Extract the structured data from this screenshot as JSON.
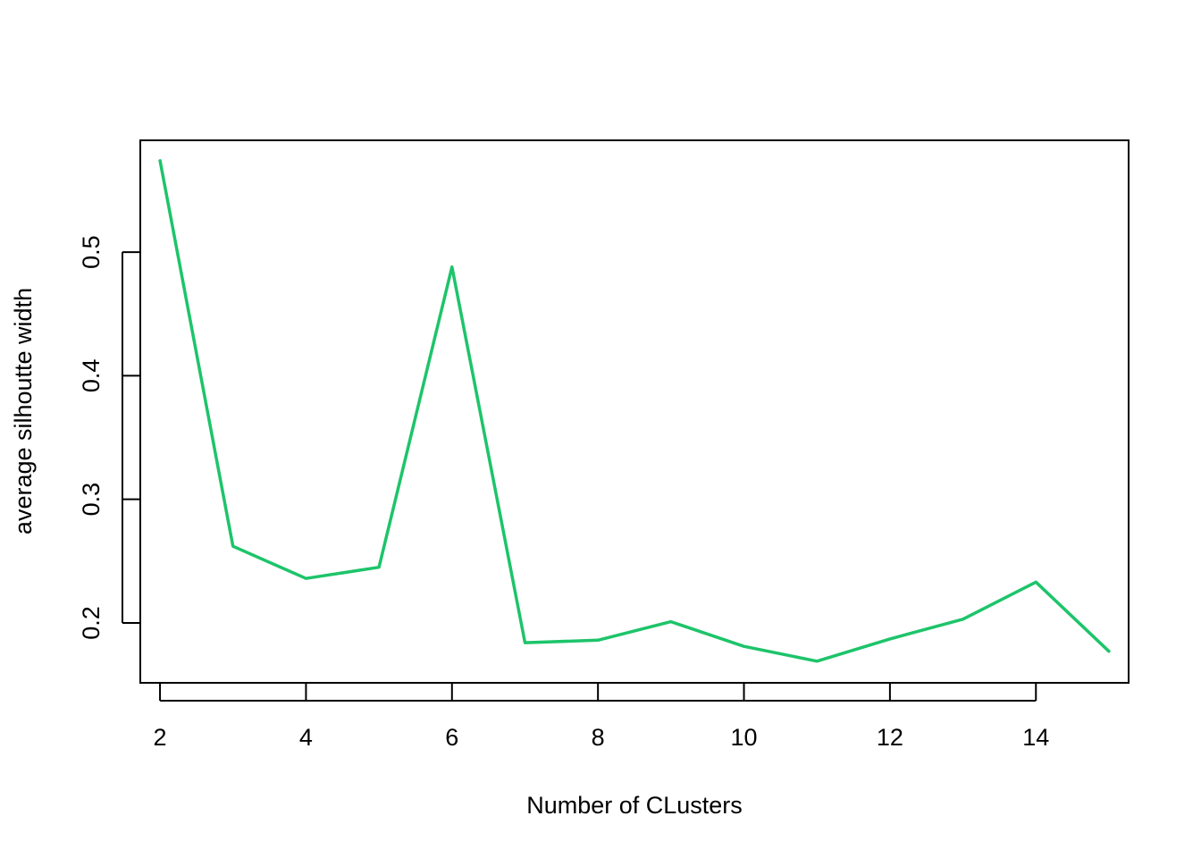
{
  "chart_data": {
    "type": "line",
    "title": "",
    "xlabel": "Number of CLusters",
    "ylabel": "average silhoutte width",
    "xlim": [
      1.73,
      15.27
    ],
    "ylim": [
      0.1515,
      0.5905
    ],
    "x_ticks": [
      2,
      4,
      6,
      8,
      10,
      12,
      14
    ],
    "y_ticks": [
      0.2,
      0.3,
      0.4,
      0.5
    ],
    "x_tick_labels": [
      "2",
      "4",
      "6",
      "8",
      "10",
      "12",
      "14"
    ],
    "y_tick_labels": [
      "0.2",
      "0.3",
      "0.4",
      "0.5"
    ],
    "grid": false,
    "legend": "none",
    "series": [
      {
        "color": "#1DC46A",
        "x": [
          2,
          3,
          4,
          5,
          6,
          7,
          8,
          9,
          10,
          11,
          12,
          13,
          14,
          15
        ],
        "y": [
          0.574,
          0.262,
          0.236,
          0.245,
          0.488,
          0.184,
          0.186,
          0.201,
          0.181,
          0.169,
          0.187,
          0.203,
          0.233,
          0.177
        ]
      }
    ]
  }
}
